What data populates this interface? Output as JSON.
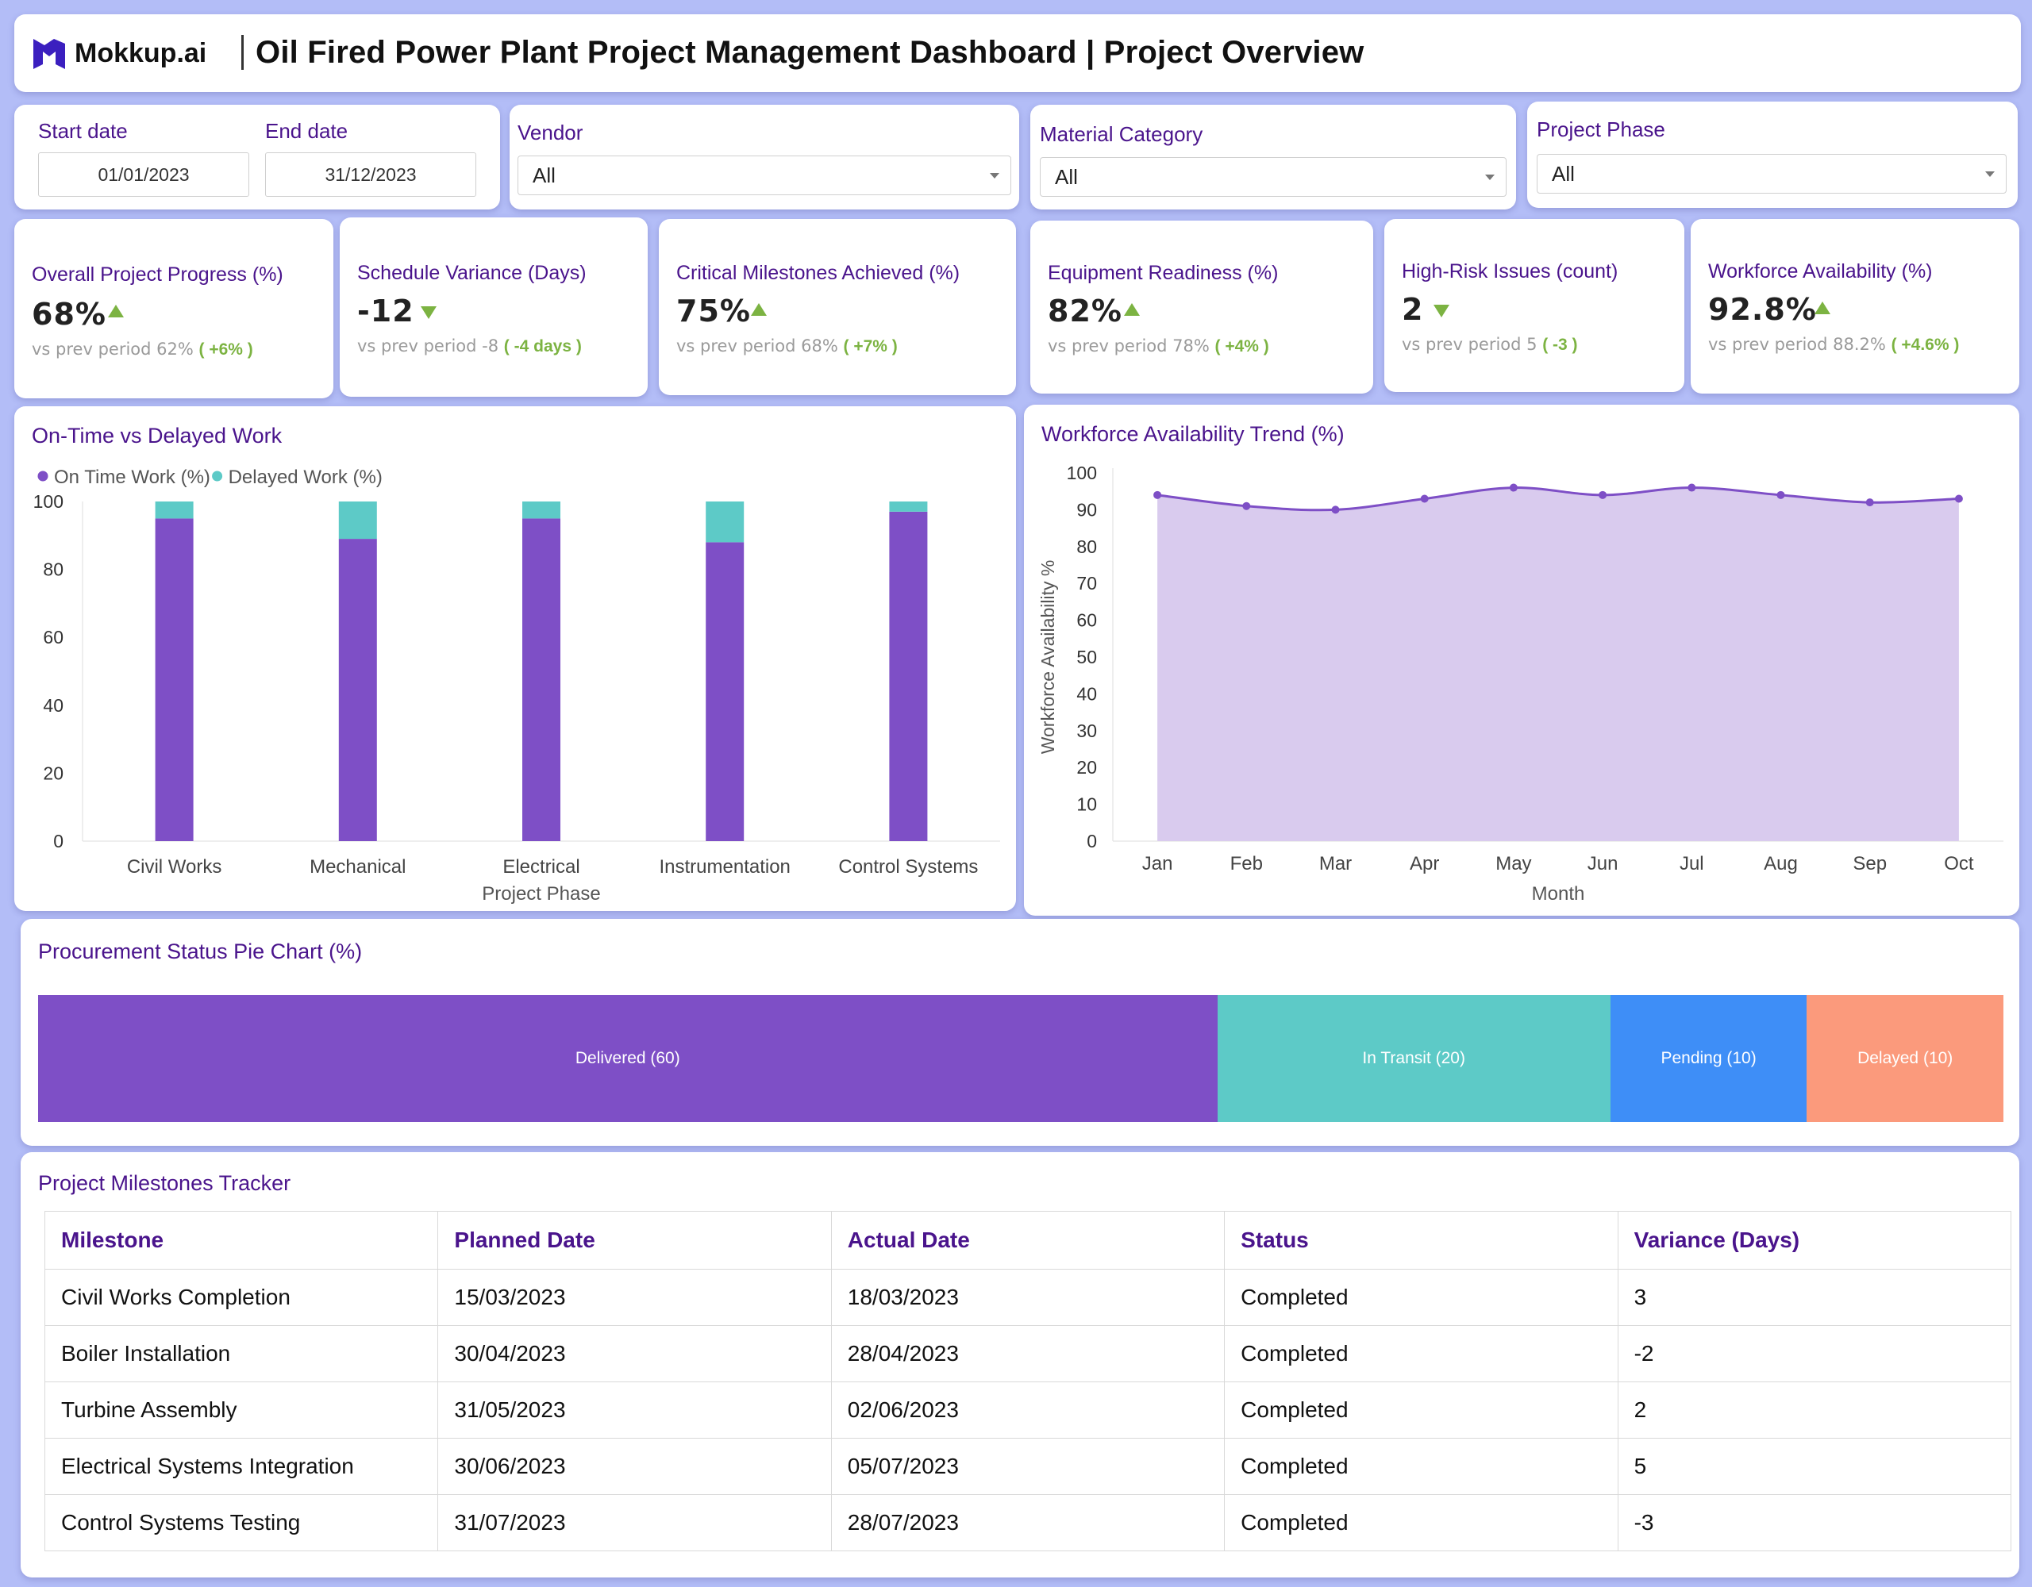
{
  "header": {
    "logo_text": "Mokkup.ai",
    "title": "Oil Fired Power Plant Project Management Dashboard | Project Overview"
  },
  "filters": {
    "start_date_label": "Start date",
    "start_date_value": "01/01/2023",
    "end_date_label": "End date",
    "end_date_value": "31/12/2023",
    "vendor_label": "Vendor",
    "vendor_value": "All",
    "material_label": "Material Category",
    "material_value": "All",
    "phase_label": "Project Phase",
    "phase_value": "All"
  },
  "kpis": [
    {
      "title": "Overall Project Progress (%)",
      "value": "68%",
      "trend": "up",
      "prev_label": "vs prev period",
      "prev_value": "62%",
      "delta": "( +6% )"
    },
    {
      "title": "Schedule Variance (Days)",
      "value": "-12",
      "trend": "down",
      "prev_label": "vs prev period",
      "prev_value": "-8",
      "delta": "( -4 days )"
    },
    {
      "title": "Critical Milestones Achieved (%)",
      "value": "75%",
      "trend": "up",
      "prev_label": "vs prev period",
      "prev_value": "68%",
      "delta": "( +7% )"
    },
    {
      "title": "Equipment Readiness (%)",
      "value": "82%",
      "trend": "up",
      "prev_label": "vs prev period",
      "prev_value": "78%",
      "delta": "( +4% )"
    },
    {
      "title": "High-Risk Issues (count)",
      "value": "2",
      "trend": "down",
      "prev_label": "vs prev period",
      "prev_value": "5",
      "delta": "( -3 )"
    },
    {
      "title": "Workforce Availability (%)",
      "value": "92.8%",
      "trend": "up",
      "prev_label": "vs prev period",
      "prev_value": "88.2%",
      "delta": "( +4.6% )"
    }
  ],
  "chart_data": [
    {
      "type": "bar",
      "stacked": true,
      "title": "On-Time vs Delayed Work",
      "xlabel": "Project Phase",
      "ylabel": "",
      "ylim": [
        0,
        100
      ],
      "yticks": [
        0,
        20,
        40,
        60,
        80,
        100
      ],
      "legend_position": "top-left",
      "categories": [
        "Civil Works",
        "Mechanical",
        "Electrical",
        "Instrumentation",
        "Control Systems"
      ],
      "series": [
        {
          "name": "On Time Work (%)",
          "color": "#7e4fc6",
          "values": [
            95,
            89,
            95,
            88,
            97
          ]
        },
        {
          "name": "Delayed Work (%)",
          "color": "#5dcac7",
          "values": [
            5,
            11,
            5,
            12,
            3
          ]
        }
      ]
    },
    {
      "type": "area",
      "title": "Workforce Availability Trend (%)",
      "xlabel": "Month",
      "ylabel": "Workforce Availability %",
      "ylim": [
        0,
        100
      ],
      "yticks": [
        0,
        10,
        20,
        30,
        40,
        50,
        60,
        70,
        80,
        90,
        100
      ],
      "categories": [
        "Jan",
        "Feb",
        "Mar",
        "Apr",
        "May",
        "Jun",
        "Jul",
        "Aug",
        "Sep",
        "Oct"
      ],
      "series": [
        {
          "name": "",
          "color": "#7e4fc6",
          "fill": "#d9cbee",
          "values": [
            94,
            91,
            90,
            93,
            96,
            94,
            96,
            94,
            92,
            93
          ]
        }
      ]
    },
    {
      "type": "bar",
      "orientation": "horizontal-100%-stacked",
      "title": "Procurement Status Pie Chart (%)",
      "categories": [
        "Delivered (60)",
        "In Transit (20)",
        "Pending (10)",
        "Delayed (10)"
      ],
      "values": [
        60,
        20,
        10,
        10
      ],
      "colors": [
        "#7e4fc6",
        "#5dcac7",
        "#3e8ef7",
        "#fb9a7c"
      ]
    }
  ],
  "milestones": {
    "title": "Project Milestones Tracker",
    "columns": [
      "Milestone",
      "Planned Date",
      "Actual Date",
      "Status",
      "Variance (Days)"
    ],
    "rows": [
      [
        "Civil Works Completion",
        "15/03/2023",
        "18/03/2023",
        "Completed",
        "3"
      ],
      [
        "Boiler Installation",
        "30/04/2023",
        "28/04/2023",
        "Completed",
        "-2"
      ],
      [
        "Turbine Assembly",
        "31/05/2023",
        "02/06/2023",
        "Completed",
        "2"
      ],
      [
        "Electrical Systems Integration",
        "30/06/2023",
        "05/07/2023",
        "Completed",
        "5"
      ],
      [
        "Control Systems Testing",
        "31/07/2023",
        "28/07/2023",
        "Completed",
        "-3"
      ]
    ]
  },
  "icons": {
    "logo": "mokkup-logo-icon",
    "caret": "chevron-down-icon",
    "trend_up": "triangle-up-icon",
    "trend_down": "triangle-down-icon"
  }
}
